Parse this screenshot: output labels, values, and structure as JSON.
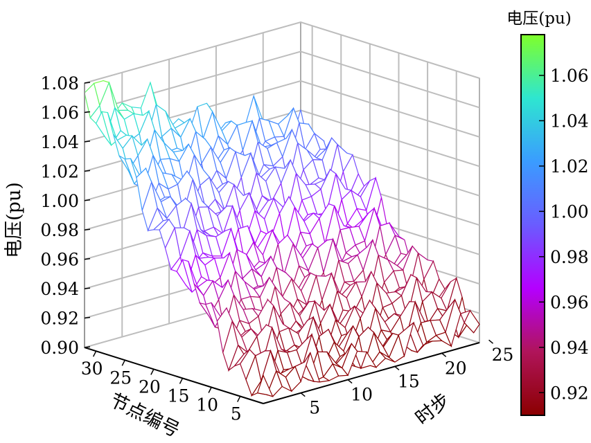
{
  "chart_data": {
    "type": "surface3d",
    "zlabel": "电压(pu)",
    "xlabel": "时步",
    "ylabel": "节点编号",
    "colorbar_title": "电压(pu)",
    "zlim": [
      0.9,
      1.08
    ],
    "xlim": [
      1,
      24
    ],
    "ylim": [
      1,
      32
    ],
    "z_ticks": [
      "0.90",
      "0.92",
      "0.94",
      "0.96",
      "0.98",
      "1.00",
      "1.02",
      "1.04",
      "1.06",
      "1.08"
    ],
    "x_ticks": [
      "5",
      "10",
      "15",
      "20",
      "25"
    ],
    "y_ticks": [
      "5",
      "10",
      "15",
      "20",
      "25",
      "30"
    ],
    "colorbar_ticks": [
      "0.92",
      "0.94",
      "0.96",
      "0.98",
      "1.00",
      "1.02",
      "1.04",
      "1.06"
    ],
    "colormap": [
      "#8b0000",
      "#b0145a",
      "#b400ff",
      "#6a5cff",
      "#3a9cff",
      "#2ee6d0",
      "#7fff2a"
    ],
    "grid": true,
    "series": [
      {
        "time_step": 1,
        "voltage_by_node": [
          0.91,
          0.912,
          0.915,
          0.918,
          0.922,
          0.926,
          0.93,
          0.935,
          0.94,
          0.945,
          0.95,
          0.955,
          0.96,
          0.966,
          0.972,
          0.978,
          0.984,
          0.99,
          0.996,
          1.002,
          1.008,
          1.014,
          1.02,
          1.026,
          1.032,
          1.038,
          1.044,
          1.05,
          1.056,
          1.062,
          1.07,
          1.078
        ]
      },
      {
        "time_step": 12,
        "voltage_by_node": [
          0.905,
          0.906,
          0.908,
          0.91,
          0.912,
          0.914,
          0.916,
          0.918,
          0.921,
          0.924,
          0.927,
          0.93,
          0.934,
          0.938,
          0.942,
          0.946,
          0.95,
          0.955,
          0.96,
          0.965,
          0.97,
          0.975,
          0.98,
          0.986,
          0.992,
          0.998,
          1.004,
          1.01,
          1.016,
          1.022,
          1.028,
          1.034
        ]
      },
      {
        "time_step": 24,
        "voltage_by_node": [
          0.915,
          0.916,
          0.918,
          0.92,
          0.923,
          0.926,
          0.929,
          0.932,
          0.935,
          0.938,
          0.942,
          0.946,
          0.95,
          0.954,
          0.958,
          0.962,
          0.966,
          0.97,
          0.974,
          0.978,
          0.982,
          0.986,
          0.99,
          0.994,
          0.998,
          1.0,
          1.002,
          1.004,
          1.006,
          1.008,
          1.01,
          1.012
        ]
      }
    ]
  }
}
